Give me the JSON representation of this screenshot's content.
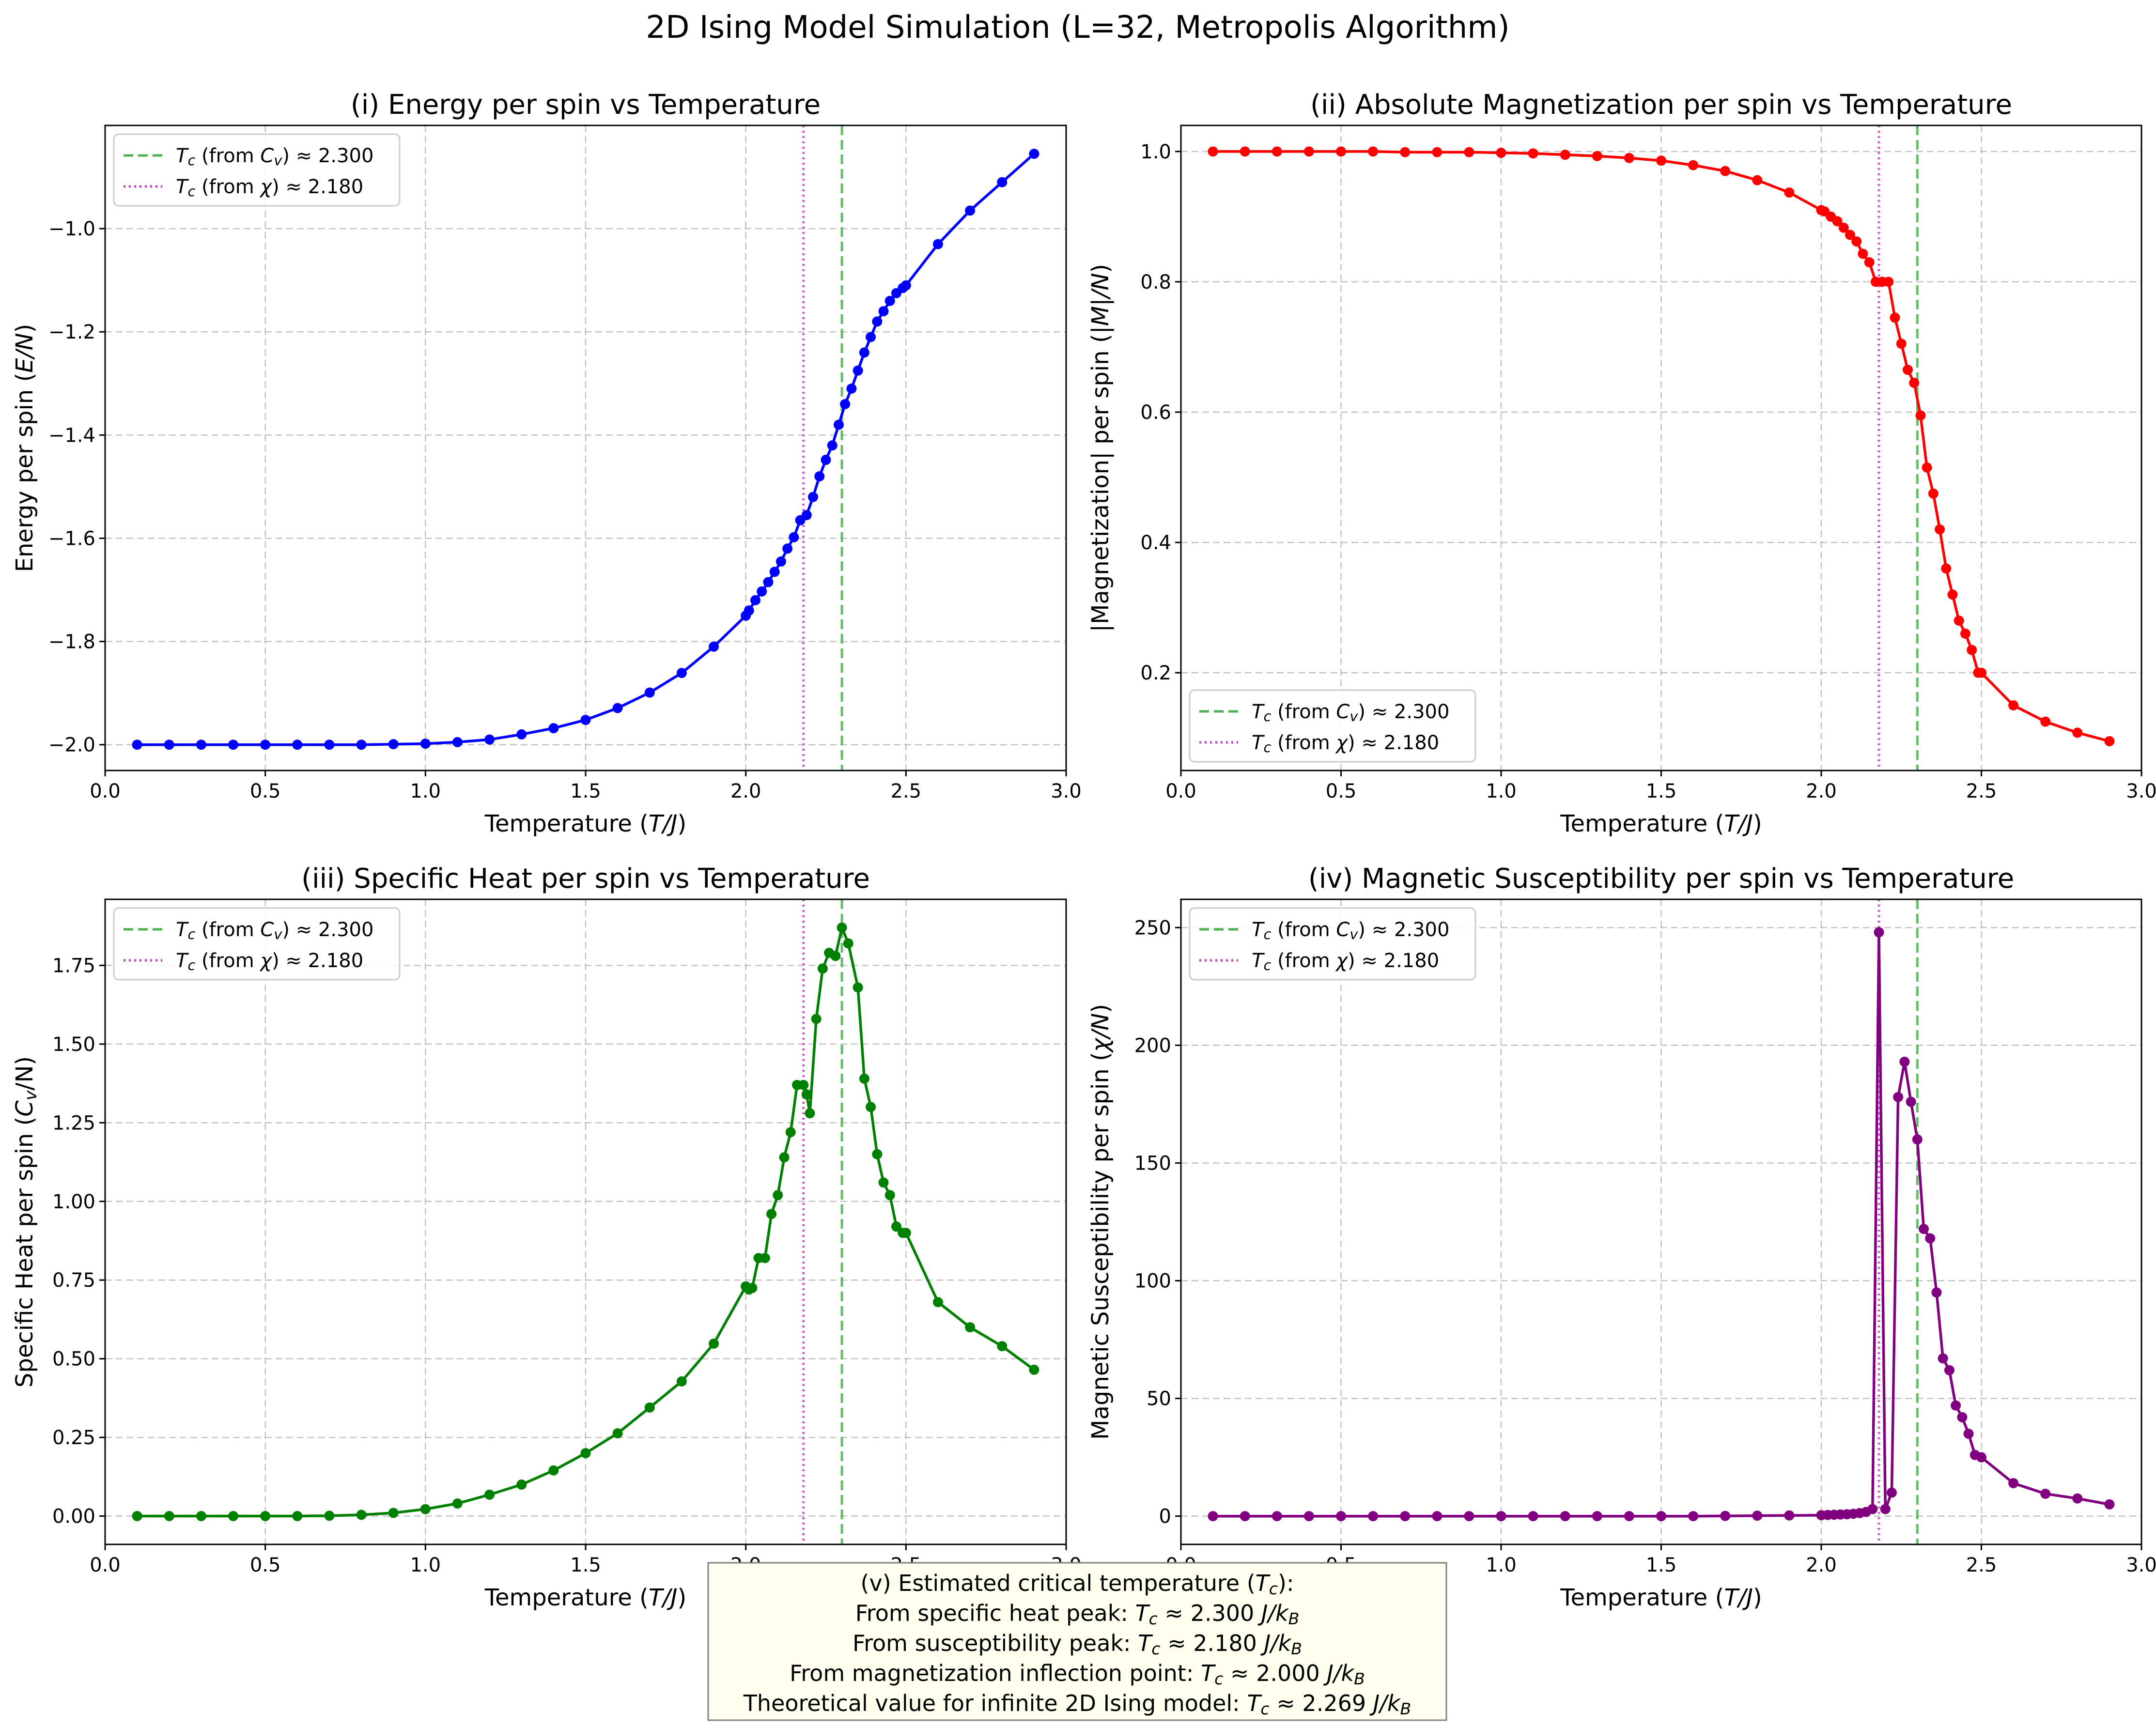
{
  "figure": {
    "suptitle": "2D Ising Model Simulation (L=32, Metropolis Algorithm)",
    "legend_green": "Tc (from Cv) ≈ 2.300",
    "legend_purple": "Tc (from χ) ≈ 2.180",
    "colors": {
      "energy": "#0000ff",
      "magnetization": "#ff0000",
      "specific_heat": "#008000",
      "susceptibility": "#800080",
      "tc_cv_line": "#4caf50",
      "tc_chi_line": "#bf40bf",
      "box_face": "#fffff0"
    }
  },
  "textbox": {
    "lines": [
      "(v) Estimated critical temperature (Tc):",
      "From specific heat peak: Tc ≈ 2.300 J/kB",
      "From susceptibility peak: Tc ≈ 2.180 J/kB",
      "From magnetization inflection point: Tc ≈ 2.000 J/kB",
      "Theoretical value for infinite 2D Ising model: Tc ≈ 2.269 J/kB"
    ]
  },
  "chart_data": [
    {
      "type": "line",
      "title": "(i) Energy per spin vs Temperature",
      "xlabel": "Temperature (T/J)",
      "ylabel": "Energy per spin (E/N)",
      "xlim": [
        0.0,
        3.0
      ],
      "ylim": [
        -2.05,
        -0.8
      ],
      "xticks": [
        "0.0",
        "0.5",
        "1.0",
        "1.5",
        "2.0",
        "2.5",
        "3.0"
      ],
      "yticks": [
        "−2.0",
        "−1.8",
        "−1.6",
        "−1.4",
        "−1.2",
        "−1.0"
      ],
      "ytick_values": [
        -2.0,
        -1.8,
        -1.6,
        -1.4,
        -1.2,
        -1.0
      ],
      "grid": true,
      "legend_position": "upper left",
      "vlines": [
        {
          "x": 2.3,
          "style": "dashed",
          "label": "Tc (from Cv) ≈ 2.300"
        },
        {
          "x": 2.18,
          "style": "dotted",
          "label": "Tc (from χ) ≈ 2.180"
        }
      ],
      "series": [
        {
          "x": [
            0.1,
            0.2,
            0.3,
            0.4,
            0.5,
            0.6,
            0.7,
            0.8,
            0.9,
            1.0,
            1.1,
            1.2,
            1.3,
            1.4,
            1.5,
            1.6,
            1.7,
            1.8,
            1.9,
            2.0,
            2.01,
            2.03,
            2.05,
            2.07,
            2.09,
            2.11,
            2.13,
            2.15,
            2.17,
            2.19,
            2.21,
            2.23,
            2.25,
            2.27,
            2.29,
            2.31,
            2.33,
            2.35,
            2.37,
            2.39,
            2.41,
            2.43,
            2.45,
            2.47,
            2.49,
            2.5,
            2.6,
            2.7,
            2.8,
            2.9
          ],
          "y": [
            -2.0,
            -2.0,
            -2.0,
            -2.0,
            -2.0,
            -2.0,
            -2.0,
            -2.0,
            -1.999,
            -1.998,
            -1.995,
            -1.99,
            -1.98,
            -1.968,
            -1.952,
            -1.929,
            -1.899,
            -1.861,
            -1.81,
            -1.75,
            -1.74,
            -1.72,
            -1.703,
            -1.685,
            -1.665,
            -1.645,
            -1.62,
            -1.598,
            -1.565,
            -1.555,
            -1.52,
            -1.48,
            -1.448,
            -1.42,
            -1.38,
            -1.34,
            -1.31,
            -1.275,
            -1.24,
            -1.21,
            -1.18,
            -1.16,
            -1.14,
            -1.125,
            -1.115,
            -1.11,
            -1.03,
            -0.965,
            -0.91,
            -0.855
          ]
        }
      ]
    },
    {
      "type": "line",
      "title": "(ii) Absolute Magnetization per spin vs Temperature",
      "xlabel": "Temperature (T/J)",
      "ylabel": "|Magnetization| per spin (|M|/N)",
      "xlim": [
        0.0,
        3.0
      ],
      "ylim": [
        0.05,
        1.04
      ],
      "xticks": [
        "0.0",
        "0.5",
        "1.0",
        "1.5",
        "2.0",
        "2.5",
        "3.0"
      ],
      "yticks": [
        "0.2",
        "0.4",
        "0.6",
        "0.8",
        "1.0"
      ],
      "ytick_values": [
        0.2,
        0.4,
        0.6,
        0.8,
        1.0
      ],
      "grid": true,
      "legend_position": "lower left",
      "vlines": [
        {
          "x": 2.3,
          "style": "dashed",
          "label": "Tc (from Cv) ≈ 2.300"
        },
        {
          "x": 2.18,
          "style": "dotted",
          "label": "Tc (from χ) ≈ 2.180"
        }
      ],
      "series": [
        {
          "x": [
            0.1,
            0.2,
            0.3,
            0.4,
            0.5,
            0.6,
            0.7,
            0.8,
            0.9,
            1.0,
            1.1,
            1.2,
            1.3,
            1.4,
            1.5,
            1.6,
            1.7,
            1.8,
            1.9,
            2.0,
            2.01,
            2.03,
            2.05,
            2.07,
            2.09,
            2.11,
            2.13,
            2.15,
            2.17,
            2.19,
            2.21,
            2.23,
            2.25,
            2.27,
            2.29,
            2.31,
            2.33,
            2.35,
            2.37,
            2.39,
            2.41,
            2.43,
            2.45,
            2.47,
            2.49,
            2.5,
            2.6,
            2.7,
            2.8,
            2.9
          ],
          "y": [
            1.0,
            1.0,
            1.0,
            1.0,
            1.0,
            1.0,
            0.999,
            0.999,
            0.999,
            0.998,
            0.997,
            0.995,
            0.993,
            0.99,
            0.986,
            0.979,
            0.97,
            0.956,
            0.937,
            0.91,
            0.908,
            0.9,
            0.893,
            0.883,
            0.872,
            0.862,
            0.843,
            0.83,
            0.8,
            0.8,
            0.8,
            0.745,
            0.705,
            0.665,
            0.645,
            0.595,
            0.515,
            0.475,
            0.42,
            0.36,
            0.32,
            0.28,
            0.26,
            0.235,
            0.2,
            0.2,
            0.15,
            0.125,
            0.108,
            0.095
          ]
        }
      ]
    },
    {
      "type": "line",
      "title": "(iii) Specific Heat per spin vs Temperature",
      "xlabel": "Temperature (T/J)",
      "ylabel": "Specific Heat per spin (Cv/N)",
      "xlim": [
        0.0,
        3.0
      ],
      "ylim": [
        -0.09,
        1.96
      ],
      "xticks": [
        "0.0",
        "0.5",
        "1.0",
        "1.5",
        "2.0",
        "2.5",
        "3.0"
      ],
      "yticks": [
        "0.00",
        "0.25",
        "0.50",
        "0.75",
        "1.00",
        "1.25",
        "1.50",
        "1.75"
      ],
      "ytick_values": [
        0.0,
        0.25,
        0.5,
        0.75,
        1.0,
        1.25,
        1.5,
        1.75
      ],
      "grid": true,
      "legend_position": "upper left",
      "vlines": [
        {
          "x": 2.3,
          "style": "dashed",
          "label": "Tc (from Cv) ≈ 2.300"
        },
        {
          "x": 2.18,
          "style": "dotted",
          "label": "Tc (from χ) ≈ 2.180"
        }
      ],
      "series": [
        {
          "x": [
            0.1,
            0.2,
            0.3,
            0.4,
            0.5,
            0.6,
            0.7,
            0.8,
            0.9,
            1.0,
            1.1,
            1.2,
            1.3,
            1.4,
            1.5,
            1.6,
            1.7,
            1.8,
            1.9,
            2.0,
            2.01,
            2.02,
            2.04,
            2.06,
            2.08,
            2.1,
            2.12,
            2.14,
            2.16,
            2.18,
            2.19,
            2.2,
            2.22,
            2.24,
            2.26,
            2.28,
            2.3,
            2.32,
            2.35,
            2.37,
            2.39,
            2.41,
            2.43,
            2.45,
            2.47,
            2.49,
            2.5,
            2.6,
            2.7,
            2.8,
            2.9
          ],
          "y": [
            0.0,
            0.0,
            0.0,
            0.0,
            0.0,
            0.0,
            0.001,
            0.004,
            0.01,
            0.022,
            0.04,
            0.068,
            0.1,
            0.145,
            0.2,
            0.263,
            0.345,
            0.428,
            0.548,
            0.73,
            0.72,
            0.725,
            0.82,
            0.82,
            0.96,
            1.02,
            1.14,
            1.22,
            1.37,
            1.37,
            1.34,
            1.28,
            1.58,
            1.74,
            1.79,
            1.78,
            1.87,
            1.82,
            1.68,
            1.39,
            1.3,
            1.15,
            1.06,
            1.02,
            0.92,
            0.9,
            0.9,
            0.68,
            0.6,
            0.54,
            0.465
          ]
        }
      ]
    },
    {
      "type": "line",
      "title": "(iv) Magnetic Susceptibility per spin vs Temperature",
      "xlabel": "Temperature (T/J)",
      "ylabel": "Magnetic Susceptibility per spin (χ/N)",
      "xlim": [
        0.0,
        3.0
      ],
      "ylim": [
        -12,
        262
      ],
      "xticks": [
        "0.0",
        "0.5",
        "1.0",
        "1.5",
        "2.0",
        "2.5",
        "3.0"
      ],
      "yticks": [
        "0",
        "50",
        "100",
        "150",
        "200",
        "250"
      ],
      "ytick_values": [
        0,
        50,
        100,
        150,
        200,
        250
      ],
      "grid": true,
      "legend_position": "upper left",
      "vlines": [
        {
          "x": 2.3,
          "style": "dashed",
          "label": "Tc (from Cv) ≈ 2.300"
        },
        {
          "x": 2.18,
          "style": "dotted",
          "label": "Tc (from χ) ≈ 2.180"
        }
      ],
      "series": [
        {
          "x": [
            0.1,
            0.2,
            0.3,
            0.4,
            0.5,
            0.6,
            0.7,
            0.8,
            0.9,
            1.0,
            1.1,
            1.2,
            1.3,
            1.4,
            1.5,
            1.6,
            1.7,
            1.8,
            1.9,
            2.0,
            2.02,
            2.04,
            2.06,
            2.08,
            2.1,
            2.12,
            2.14,
            2.16,
            2.18,
            2.2,
            2.22,
            2.24,
            2.26,
            2.28,
            2.3,
            2.32,
            2.34,
            2.36,
            2.38,
            2.4,
            2.42,
            2.44,
            2.46,
            2.48,
            2.5,
            2.6,
            2.7,
            2.8,
            2.9
          ],
          "y": [
            0,
            0,
            0,
            0,
            0,
            0,
            0,
            0,
            0,
            0,
            0,
            0,
            0,
            0,
            0,
            0,
            0.1,
            0.2,
            0.3,
            0.4,
            0.5,
            0.6,
            0.7,
            0.8,
            1.0,
            1.3,
            1.8,
            3.0,
            248,
            3.0,
            10,
            178,
            193,
            176,
            160,
            122,
            118,
            95,
            67,
            62,
            47,
            42,
            35,
            26,
            25,
            14,
            9.5,
            7.5,
            5.0
          ]
        }
      ]
    }
  ]
}
